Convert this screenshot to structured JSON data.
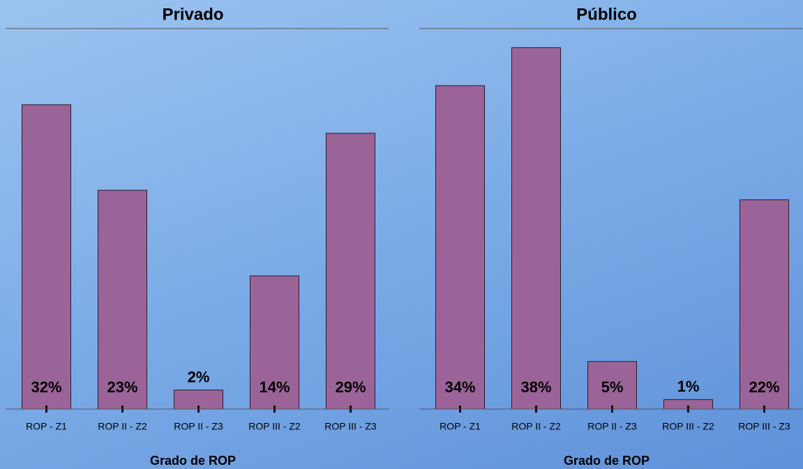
{
  "chart_data": [
    {
      "type": "bar",
      "title": "Privado",
      "x_label": "Grado de ROP",
      "categories": [
        "ROP - Z1",
        "ROP II - Z2",
        "ROP II - Z3",
        "ROP III - Z2",
        "ROP III - Z3"
      ],
      "values": [
        32,
        23,
        2,
        14,
        29
      ],
      "value_labels": [
        "32%",
        "23%",
        "2%",
        "14%",
        "29%"
      ],
      "color": "#9b6499",
      "ylim": [
        0,
        40
      ]
    },
    {
      "type": "bar",
      "title": "Público",
      "x_label": "Grado de ROP",
      "categories": [
        "ROP - Z1",
        "ROP II - Z2",
        "ROP II - Z3",
        "ROP III - Z2",
        "ROP III - Z3"
      ],
      "values": [
        34,
        38,
        5,
        1,
        22
      ],
      "value_labels": [
        "34%",
        "38%",
        "5%",
        "1%",
        "22%"
      ],
      "color": "#9b6499",
      "ylim": [
        0,
        40
      ]
    }
  ]
}
